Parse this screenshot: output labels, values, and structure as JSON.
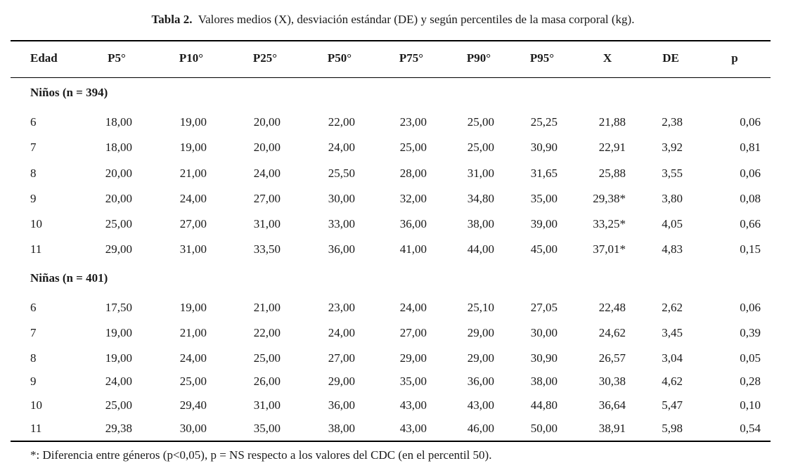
{
  "caption": {
    "label": "Tabla  2.",
    "text": "Valores medios (X), desviación estándar (DE) y según percentiles de la masa corporal (kg)."
  },
  "headers": [
    "Edad",
    "P5°",
    "P10°",
    "P25°",
    "P50°",
    "P75°",
    "P90°",
    "P95°",
    "X",
    "DE",
    "p"
  ],
  "groups": [
    {
      "label": "Niños (n = 394)",
      "rows": [
        [
          "6",
          "18,00",
          "19,00",
          "20,00",
          "22,00",
          "23,00",
          "25,00",
          "25,25",
          "21,88",
          "2,38",
          "0,06"
        ],
        [
          "7",
          "18,00",
          "19,00",
          "20,00",
          "24,00",
          "25,00",
          "25,00",
          "30,90",
          "22,91",
          "3,92",
          "0,81"
        ],
        [
          "8",
          "20,00",
          "21,00",
          "24,00",
          "25,50",
          "28,00",
          "31,00",
          "31,65",
          "25,88",
          "3,55",
          "0,06"
        ],
        [
          "9",
          "20,00",
          "24,00",
          "27,00",
          "30,00",
          "32,00",
          "34,80",
          "35,00",
          "29,38*",
          "3,80",
          "0,08"
        ],
        [
          "10",
          "25,00",
          "27,00",
          "31,00",
          "33,00",
          "36,00",
          "38,00",
          "39,00",
          "33,25*",
          "4,05",
          "0,66"
        ],
        [
          "11",
          "29,00",
          "31,00",
          "33,50",
          "36,00",
          "41,00",
          "44,00",
          "45,00",
          "37,01*",
          "4,83",
          "0,15"
        ]
      ]
    },
    {
      "label": "Niñas (n = 401)",
      "rows": [
        [
          "6",
          "17,50",
          "19,00",
          "21,00",
          "23,00",
          "24,00",
          "25,10",
          "27,05",
          "22,48",
          "2,62",
          "0,06"
        ],
        [
          "7",
          "19,00",
          "21,00",
          "22,00",
          "24,00",
          "27,00",
          "29,00",
          "30,00",
          "24,62",
          "3,45",
          "0,39"
        ],
        [
          "8",
          "19,00",
          "24,00",
          "25,00",
          "27,00",
          "29,00",
          "29,00",
          "30,90",
          "26,57",
          "3,04",
          "0,05"
        ],
        [
          "9",
          "24,00",
          "25,00",
          "26,00",
          "29,00",
          "35,00",
          "36,00",
          "38,00",
          "30,38",
          "4,62",
          "0,28"
        ],
        [
          "10",
          "25,00",
          "29,40",
          "31,00",
          "36,00",
          "43,00",
          "43,00",
          "44,80",
          "36,64",
          "5,47",
          "0,10"
        ],
        [
          "11",
          "29,38",
          "30,00",
          "35,00",
          "38,00",
          "43,00",
          "46,00",
          "50,00",
          "38,91",
          "5,98",
          "0,54"
        ]
      ]
    }
  ],
  "footnote": "*: Diferencia entre géneros (p<0,05), p =  NS respecto a los valores del CDC (en el percentil 50)."
}
